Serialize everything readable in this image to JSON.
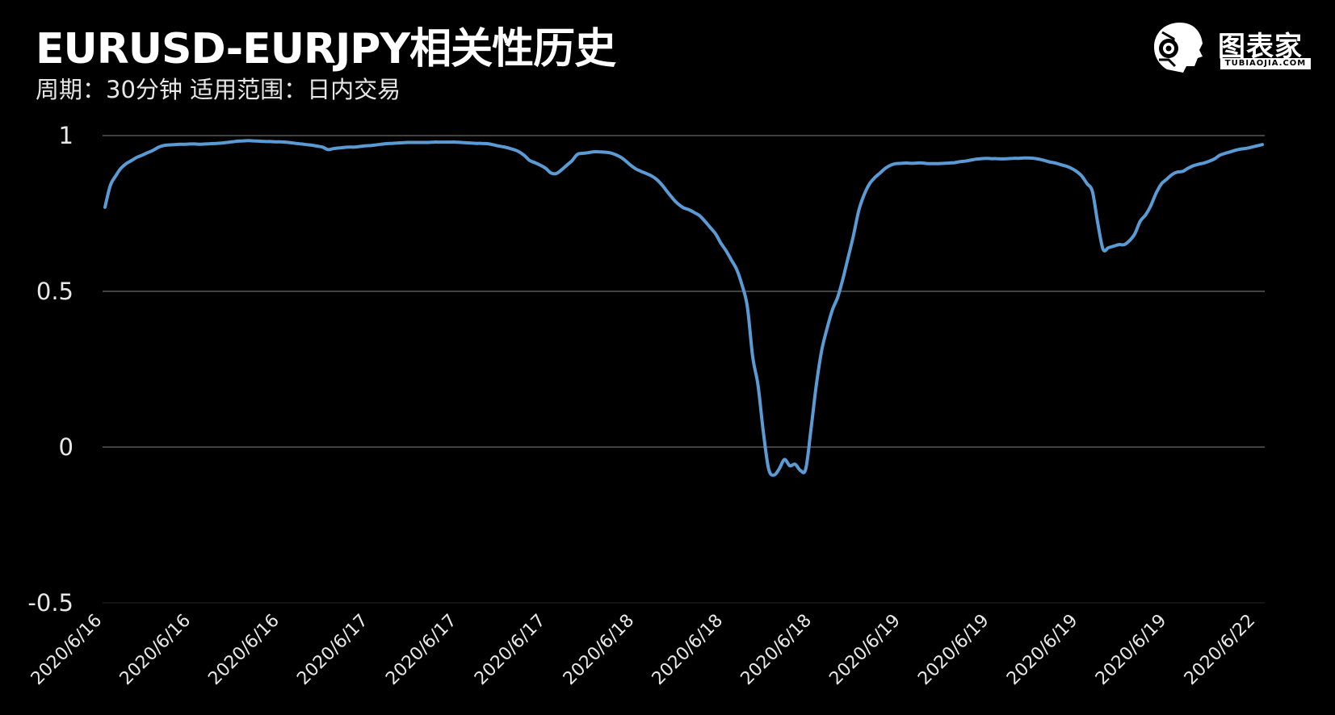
{
  "header": {
    "title": "EURUSD-EURJPY相关性历史",
    "subtitle": "周期：30分钟  适用范围：日内交易"
  },
  "logo": {
    "name": "图表家",
    "sub": "TUBIAOJIA.COM"
  },
  "colors": {
    "background": "#000000",
    "line": "#5b9bd5",
    "grid": "#595959"
  },
  "chart_data": {
    "type": "line",
    "title": "EURUSD-EURJPY相关性历史",
    "subtitle": "周期：30分钟  适用范围：日内交易",
    "ylim": [
      -0.5,
      1
    ],
    "yticks": [
      1,
      0.5,
      0,
      -0.5
    ],
    "ytick_labels": [
      "1",
      "0.5",
      "0",
      "-0.5"
    ],
    "grid": true,
    "legend": "none",
    "x_tick_labels": [
      "2020/6/16",
      "2020/6/16",
      "2020/6/16",
      "2020/6/17",
      "2020/6/17",
      "2020/6/17",
      "2020/6/18",
      "2020/6/18",
      "2020/6/18",
      "2020/6/19",
      "2020/6/19",
      "2020/6/19",
      "2020/6/19",
      "2020/6/22"
    ],
    "series": [
      {
        "values": [
          0.77,
          0.84,
          0.87,
          0.895,
          0.91,
          0.92,
          0.93,
          0.937,
          0.945,
          0.952,
          0.962,
          0.968,
          0.97,
          0.971,
          0.972,
          0.972,
          0.973,
          0.973,
          0.972,
          0.973,
          0.974,
          0.975,
          0.976,
          0.978,
          0.98,
          0.982,
          0.983,
          0.984,
          0.983,
          0.982,
          0.981,
          0.981,
          0.98,
          0.98,
          0.979,
          0.977,
          0.975,
          0.973,
          0.971,
          0.969,
          0.966,
          0.963,
          0.955,
          0.958,
          0.96,
          0.962,
          0.963,
          0.963,
          0.965,
          0.967,
          0.968,
          0.97,
          0.972,
          0.974,
          0.975,
          0.976,
          0.977,
          0.978,
          0.978,
          0.978,
          0.978,
          0.978,
          0.979,
          0.979,
          0.979,
          0.979,
          0.979,
          0.978,
          0.977,
          0.976,
          0.975,
          0.975,
          0.974,
          0.971,
          0.967,
          0.964,
          0.96,
          0.955,
          0.948,
          0.936,
          0.92,
          0.913,
          0.905,
          0.895,
          0.88,
          0.878,
          0.89,
          0.905,
          0.92,
          0.94,
          0.943,
          0.945,
          0.948,
          0.948,
          0.947,
          0.945,
          0.94,
          0.932,
          0.92,
          0.905,
          0.893,
          0.885,
          0.878,
          0.87,
          0.858,
          0.84,
          0.818,
          0.797,
          0.78,
          0.768,
          0.762,
          0.753,
          0.743,
          0.725,
          0.705,
          0.685,
          0.655,
          0.63,
          0.6,
          0.57,
          0.52,
          0.45,
          0.29,
          0.2,
          0.05,
          -0.07,
          -0.09,
          -0.07,
          -0.04,
          -0.06,
          -0.055,
          -0.075,
          -0.07,
          0.06,
          0.2,
          0.31,
          0.38,
          0.44,
          0.48,
          0.54,
          0.61,
          0.68,
          0.76,
          0.81,
          0.845,
          0.865,
          0.88,
          0.895,
          0.905,
          0.91,
          0.911,
          0.912,
          0.911,
          0.912,
          0.912,
          0.91,
          0.91,
          0.91,
          0.911,
          0.912,
          0.913,
          0.916,
          0.918,
          0.921,
          0.924,
          0.926,
          0.927,
          0.926,
          0.926,
          0.925,
          0.926,
          0.927,
          0.927,
          0.928,
          0.928,
          0.927,
          0.924,
          0.92,
          0.915,
          0.912,
          0.907,
          0.902,
          0.895,
          0.885,
          0.87,
          0.845,
          0.82,
          0.72,
          0.635,
          0.64,
          0.645,
          0.65,
          0.65,
          0.663,
          0.685,
          0.725,
          0.745,
          0.775,
          0.815,
          0.845,
          0.86,
          0.875,
          0.883,
          0.885,
          0.895,
          0.903,
          0.908,
          0.912,
          0.918,
          0.925,
          0.937,
          0.943,
          0.948,
          0.953,
          0.957,
          0.959,
          0.963,
          0.967,
          0.971
        ]
      }
    ]
  }
}
